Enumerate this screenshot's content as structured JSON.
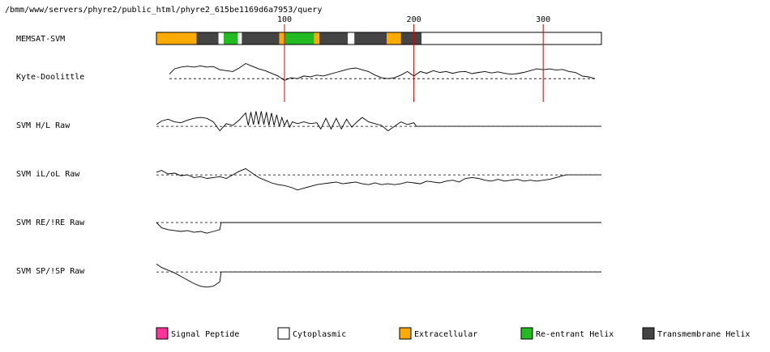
{
  "path_label": "/bmm/www/servers/phyre2/public_html/phyre2_615be1169d6a7953/query",
  "chart_data": {
    "type": "line",
    "x_range": [
      1,
      345
    ],
    "x_ticks": [
      100,
      200,
      300
    ],
    "topology_track": {
      "label": "MEMSAT-SVM",
      "segments": [
        {
          "start": 1,
          "end": 32,
          "type": "extracellular"
        },
        {
          "start": 32,
          "end": 49,
          "type": "transmembrane"
        },
        {
          "start": 49,
          "end": 53,
          "type": "cytoplasmic"
        },
        {
          "start": 53,
          "end": 64,
          "type": "reentrant"
        },
        {
          "start": 64,
          "end": 67,
          "type": "cytoplasmic"
        },
        {
          "start": 67,
          "end": 96,
          "type": "transmembrane"
        },
        {
          "start": 96,
          "end": 100,
          "type": "extracellular"
        },
        {
          "start": 100,
          "end": 123,
          "type": "reentrant"
        },
        {
          "start": 123,
          "end": 127,
          "type": "extracellular"
        },
        {
          "start": 127,
          "end": 149,
          "type": "transmembrane"
        },
        {
          "start": 149,
          "end": 154,
          "type": "cytoplasmic"
        },
        {
          "start": 154,
          "end": 179,
          "type": "transmembrane"
        },
        {
          "start": 179,
          "end": 190,
          "type": "extracellular"
        },
        {
          "start": 190,
          "end": 206,
          "type": "transmembrane"
        },
        {
          "start": 206,
          "end": 345,
          "type": "cytoplasmic"
        }
      ]
    },
    "series": [
      {
        "name": "Kyte-Doolittle",
        "y_range": [
          -1,
          1
        ],
        "baseline": -0.1,
        "end_x": 340,
        "points": [
          [
            11,
            0.15
          ],
          [
            15,
            0.45
          ],
          [
            20,
            0.55
          ],
          [
            25,
            0.6
          ],
          [
            30,
            0.55
          ],
          [
            35,
            0.62
          ],
          [
            40,
            0.55
          ],
          [
            45,
            0.58
          ],
          [
            50,
            0.4
          ],
          [
            55,
            0.35
          ],
          [
            60,
            0.3
          ],
          [
            65,
            0.5
          ],
          [
            70,
            0.75
          ],
          [
            75,
            0.6
          ],
          [
            80,
            0.45
          ],
          [
            85,
            0.35
          ],
          [
            90,
            0.2
          ],
          [
            95,
            0.05
          ],
          [
            100,
            -0.2
          ],
          [
            105,
            -0.05
          ],
          [
            110,
            -0.1
          ],
          [
            115,
            0.05
          ],
          [
            120,
            0.0
          ],
          [
            125,
            0.1
          ],
          [
            130,
            0.05
          ],
          [
            135,
            0.15
          ],
          [
            140,
            0.25
          ],
          [
            145,
            0.35
          ],
          [
            150,
            0.45
          ],
          [
            155,
            0.5
          ],
          [
            160,
            0.4
          ],
          [
            165,
            0.3
          ],
          [
            170,
            0.1
          ],
          [
            175,
            -0.05
          ],
          [
            180,
            -0.1
          ],
          [
            185,
            -0.05
          ],
          [
            190,
            0.1
          ],
          [
            195,
            0.3
          ],
          [
            200,
            0.05
          ],
          [
            205,
            0.3
          ],
          [
            210,
            0.2
          ],
          [
            215,
            0.35
          ],
          [
            220,
            0.25
          ],
          [
            225,
            0.3
          ],
          [
            230,
            0.2
          ],
          [
            235,
            0.28
          ],
          [
            240,
            0.3
          ],
          [
            245,
            0.18
          ],
          [
            250,
            0.25
          ],
          [
            255,
            0.3
          ],
          [
            260,
            0.22
          ],
          [
            265,
            0.28
          ],
          [
            270,
            0.2
          ],
          [
            275,
            0.15
          ],
          [
            280,
            0.18
          ],
          [
            285,
            0.25
          ],
          [
            290,
            0.35
          ],
          [
            295,
            0.45
          ],
          [
            300,
            0.4
          ],
          [
            305,
            0.45
          ],
          [
            310,
            0.38
          ],
          [
            315,
            0.42
          ],
          [
            320,
            0.3
          ],
          [
            325,
            0.25
          ],
          [
            330,
            0.05
          ],
          [
            335,
            0.0
          ],
          [
            340,
            -0.1
          ]
        ]
      },
      {
        "name": "SVM H/L Raw",
        "y_range": [
          -1,
          1
        ],
        "baseline": -0.05,
        "end_x": 345,
        "points": [
          [
            1,
            0.05
          ],
          [
            5,
            0.25
          ],
          [
            10,
            0.35
          ],
          [
            15,
            0.2
          ],
          [
            20,
            0.15
          ],
          [
            25,
            0.3
          ],
          [
            30,
            0.4
          ],
          [
            35,
            0.45
          ],
          [
            40,
            0.4
          ],
          [
            45,
            0.2
          ],
          [
            50,
            -0.3
          ],
          [
            55,
            0.1
          ],
          [
            60,
            0.0
          ],
          [
            65,
            0.3
          ],
          [
            70,
            0.7
          ],
          [
            72,
            0.0
          ],
          [
            74,
            0.75
          ],
          [
            76,
            0.05
          ],
          [
            78,
            0.8
          ],
          [
            80,
            0.05
          ],
          [
            82,
            0.8
          ],
          [
            84,
            0.05
          ],
          [
            86,
            0.75
          ],
          [
            88,
            0.0
          ],
          [
            90,
            0.7
          ],
          [
            92,
            0.0
          ],
          [
            94,
            0.6
          ],
          [
            96,
            -0.05
          ],
          [
            98,
            0.45
          ],
          [
            100,
            0.0
          ],
          [
            102,
            0.3
          ],
          [
            104,
            -0.1
          ],
          [
            106,
            0.2
          ],
          [
            110,
            0.1
          ],
          [
            115,
            0.2
          ],
          [
            120,
            0.1
          ],
          [
            125,
            0.15
          ],
          [
            128,
            -0.2
          ],
          [
            132,
            0.4
          ],
          [
            136,
            -0.2
          ],
          [
            140,
            0.4
          ],
          [
            144,
            -0.2
          ],
          [
            148,
            0.35
          ],
          [
            152,
            -0.1
          ],
          [
            156,
            0.2
          ],
          [
            160,
            0.45
          ],
          [
            165,
            0.2
          ],
          [
            170,
            0.1
          ],
          [
            175,
            0.0
          ],
          [
            180,
            -0.3
          ],
          [
            185,
            -0.05
          ],
          [
            190,
            0.2
          ],
          [
            195,
            0.05
          ],
          [
            200,
            0.15
          ],
          [
            202,
            -0.05
          ],
          [
            345,
            -0.05
          ]
        ]
      },
      {
        "name": "SVM iL/oL Raw",
        "y_range": [
          -1,
          1
        ],
        "baseline": -0.05,
        "end_x": 345,
        "points": [
          [
            1,
            0.1
          ],
          [
            5,
            0.2
          ],
          [
            10,
            0.0
          ],
          [
            15,
            0.05
          ],
          [
            20,
            -0.1
          ],
          [
            25,
            -0.05
          ],
          [
            30,
            -0.2
          ],
          [
            35,
            -0.15
          ],
          [
            40,
            -0.25
          ],
          [
            45,
            -0.2
          ],
          [
            50,
            -0.15
          ],
          [
            55,
            -0.25
          ],
          [
            60,
            -0.05
          ],
          [
            65,
            0.15
          ],
          [
            70,
            0.3
          ],
          [
            75,
            0.05
          ],
          [
            80,
            -0.2
          ],
          [
            85,
            -0.35
          ],
          [
            90,
            -0.5
          ],
          [
            95,
            -0.6
          ],
          [
            100,
            -0.65
          ],
          [
            105,
            -0.75
          ],
          [
            110,
            -0.9
          ],
          [
            115,
            -0.8
          ],
          [
            120,
            -0.7
          ],
          [
            125,
            -0.6
          ],
          [
            130,
            -0.55
          ],
          [
            135,
            -0.5
          ],
          [
            140,
            -0.45
          ],
          [
            145,
            -0.55
          ],
          [
            150,
            -0.5
          ],
          [
            155,
            -0.45
          ],
          [
            160,
            -0.55
          ],
          [
            165,
            -0.6
          ],
          [
            170,
            -0.5
          ],
          [
            175,
            -0.6
          ],
          [
            180,
            -0.55
          ],
          [
            185,
            -0.6
          ],
          [
            190,
            -0.55
          ],
          [
            195,
            -0.45
          ],
          [
            200,
            -0.5
          ],
          [
            205,
            -0.55
          ],
          [
            210,
            -0.4
          ],
          [
            215,
            -0.45
          ],
          [
            220,
            -0.5
          ],
          [
            225,
            -0.4
          ],
          [
            230,
            -0.35
          ],
          [
            235,
            -0.45
          ],
          [
            240,
            -0.25
          ],
          [
            245,
            -0.2
          ],
          [
            250,
            -0.25
          ],
          [
            255,
            -0.35
          ],
          [
            260,
            -0.4
          ],
          [
            265,
            -0.3
          ],
          [
            270,
            -0.4
          ],
          [
            275,
            -0.35
          ],
          [
            280,
            -0.3
          ],
          [
            285,
            -0.4
          ],
          [
            290,
            -0.35
          ],
          [
            295,
            -0.4
          ],
          [
            300,
            -0.35
          ],
          [
            305,
            -0.3
          ],
          [
            310,
            -0.2
          ],
          [
            315,
            -0.1
          ],
          [
            318,
            -0.05
          ],
          [
            345,
            -0.05
          ]
        ]
      },
      {
        "name": "SVM RE/!RE Raw",
        "y_range": [
          -1,
          1
        ],
        "baseline": 0.0,
        "end_x": 345,
        "points": [
          [
            1,
            0.0
          ],
          [
            5,
            -0.3
          ],
          [
            10,
            -0.4
          ],
          [
            15,
            -0.45
          ],
          [
            20,
            -0.5
          ],
          [
            25,
            -0.45
          ],
          [
            30,
            -0.55
          ],
          [
            35,
            -0.5
          ],
          [
            40,
            -0.6
          ],
          [
            45,
            -0.5
          ],
          [
            50,
            -0.4
          ],
          [
            51,
            0.0
          ],
          [
            345,
            0.0
          ]
        ]
      },
      {
        "name": "SVM SP/!SP Raw",
        "y_range": [
          -1,
          1
        ],
        "baseline": -0.05,
        "end_x": 345,
        "points": [
          [
            1,
            0.4
          ],
          [
            5,
            0.2
          ],
          [
            10,
            0.05
          ],
          [
            15,
            -0.1
          ],
          [
            20,
            -0.3
          ],
          [
            25,
            -0.5
          ],
          [
            30,
            -0.7
          ],
          [
            35,
            -0.85
          ],
          [
            40,
            -0.9
          ],
          [
            45,
            -0.85
          ],
          [
            50,
            -0.6
          ],
          [
            51,
            -0.05
          ],
          [
            345,
            -0.05
          ]
        ]
      }
    ],
    "legend": [
      {
        "label": "Signal Peptide",
        "color": "#ff3399"
      },
      {
        "label": "Cytoplasmic",
        "color": "#ffffff"
      },
      {
        "label": "Extracellular",
        "color": "#ffaa00"
      },
      {
        "label": "Re-entrant Helix",
        "color": "#22bb22"
      },
      {
        "label": "Transmembrane Helix",
        "color": "#444444"
      }
    ],
    "colors": {
      "extracellular": "#ffaa00",
      "transmembrane": "#444444",
      "cytoplasmic": "#ffffff",
      "reentrant": "#22bb22",
      "signal": "#ff3399",
      "marker": "#dd0000"
    }
  }
}
